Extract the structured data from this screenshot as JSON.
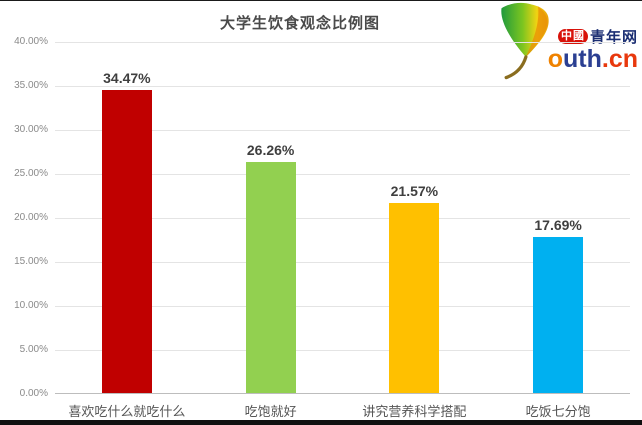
{
  "page": {
    "title": "大学生饮食观念比例图"
  },
  "logo": {
    "leaf_icon": "ginkgo-leaf",
    "badge": "中國",
    "brand": "青年网",
    "wordmark_segments": [
      {
        "text": "o",
        "color": "#ef8200"
      },
      {
        "text": "uth",
        "color": "#2b3f92"
      },
      {
        "text": ".cn",
        "color": "#e8380d"
      }
    ],
    "badge_bg": "#d8120a",
    "brand_color": "#1c2f73"
  },
  "chart_data": {
    "type": "bar",
    "title": "大学生饮食观念比例图",
    "categories": [
      "喜欢吃什么就吃什么",
      "吃饱就好",
      "讲究营养科学搭配",
      "吃饭七分饱"
    ],
    "values": [
      34.47,
      26.26,
      21.57,
      17.69
    ],
    "value_labels": [
      "34.47%",
      "26.26%",
      "21.57%",
      "17.69%"
    ],
    "bar_colors": [
      "#c00000",
      "#92d050",
      "#ffc000",
      "#00b0f0"
    ],
    "ylim": [
      0,
      40
    ],
    "ytick_step": 5,
    "ytick_labels": [
      "0.00%",
      "5.00%",
      "10.00%",
      "15.00%",
      "20.00%",
      "25.00%",
      "30.00%",
      "35.00%",
      "40.00%"
    ],
    "grid": true,
    "legend": "none",
    "xlabel": "",
    "ylabel": ""
  }
}
